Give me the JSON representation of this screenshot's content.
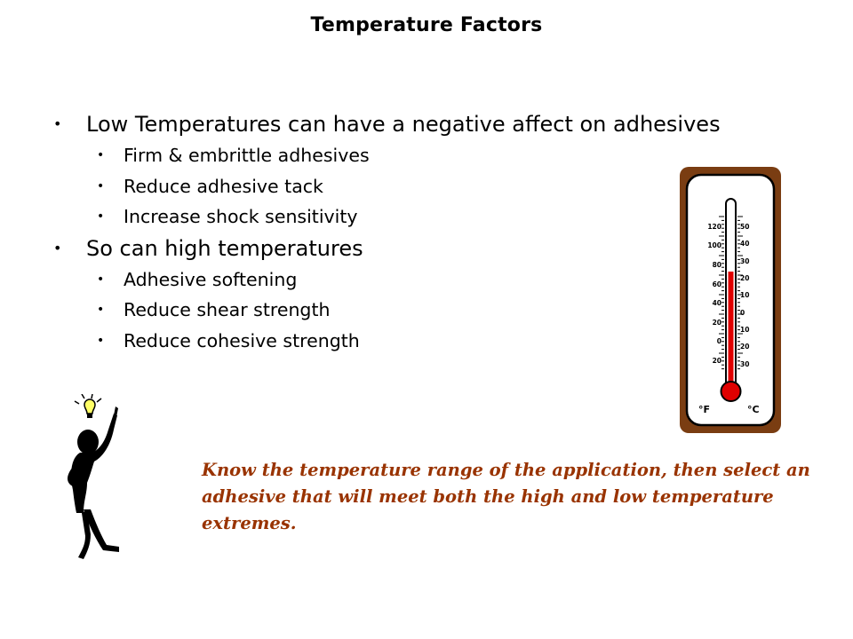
{
  "slide": {
    "title": "Temperature Factors",
    "bullets": [
      {
        "text": "Low Temperatures can have a negative affect on adhesives",
        "sub": [
          "Firm & embrittle adhesives",
          "Reduce adhesive tack",
          "Increase shock sensitivity"
        ]
      },
      {
        "text": "So can high temperatures",
        "sub": [
          "Adhesive softening",
          "Reduce shear strength",
          "Reduce cohesive strength"
        ]
      }
    ],
    "bullet_glyph": "•",
    "callout_lines": [
      "Know the temperature range of the application, then select an",
      "adhesive that will meet both the high and low temperature extremes."
    ]
  },
  "thermometer": {
    "fahrenheit_ticks": [
      "120",
      "100",
      "80",
      "60",
      "40",
      "20",
      "0",
      "20"
    ],
    "celsius_ticks": [
      "50",
      "40",
      "30",
      "20",
      "10",
      "0",
      "10",
      "20",
      "30"
    ],
    "unit_f": "°F",
    "unit_c": "°C",
    "colors": {
      "frame": "#7a3d12",
      "mercury": "#e00000",
      "face": "#ffffff"
    }
  },
  "colors": {
    "callout": "#993300",
    "bulb": "#ffff66"
  },
  "icons": {
    "thermometer": "thermometer-icon",
    "person": "idea-person-icon",
    "bulb": "lightbulb-icon"
  }
}
